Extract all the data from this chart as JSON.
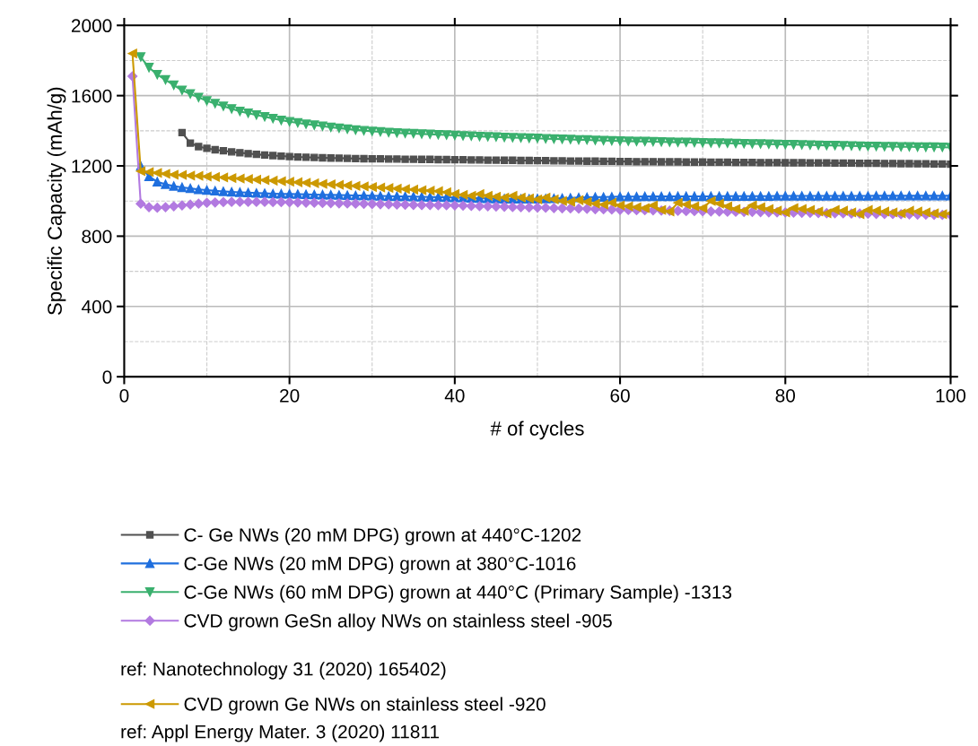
{
  "chart_data": {
    "type": "line",
    "xlabel": "# of cycles",
    "ylabel": "Specific Capacity (mAh/g)",
    "xlim": [
      0,
      100
    ],
    "xticks": [
      0,
      20,
      40,
      60,
      80,
      100
    ],
    "ylim": [
      0,
      2000
    ],
    "yticks": [
      0,
      400,
      800,
      1200,
      1600,
      2000
    ],
    "grid": true,
    "legend": "bottom",
    "line_style": "solid",
    "x": [
      1,
      2,
      3,
      4,
      5,
      6,
      7,
      8,
      9,
      10,
      11,
      12,
      13,
      14,
      15,
      16,
      17,
      18,
      19,
      20,
      21,
      22,
      23,
      24,
      25,
      26,
      27,
      28,
      29,
      30,
      31,
      32,
      33,
      34,
      35,
      36,
      37,
      38,
      39,
      40,
      41,
      42,
      43,
      44,
      45,
      46,
      47,
      48,
      49,
      50,
      51,
      52,
      53,
      54,
      55,
      56,
      57,
      58,
      59,
      60,
      61,
      62,
      63,
      64,
      65,
      66,
      67,
      68,
      69,
      70,
      71,
      72,
      73,
      74,
      75,
      76,
      77,
      78,
      79,
      80,
      81,
      82,
      83,
      84,
      85,
      86,
      87,
      88,
      89,
      90,
      91,
      92,
      93,
      94,
      95,
      96,
      97,
      98,
      99,
      100
    ],
    "series": [
      {
        "name": "C- Ge NWs (20 mM DPG) grown at 440°C-1202",
        "color": "#505050",
        "marker": "square",
        "values": [
          null,
          null,
          null,
          null,
          null,
          null,
          1390,
          1330,
          1310,
          1300,
          1292,
          1286,
          1280,
          1275,
          1270,
          1266,
          1262,
          1259,
          1256,
          1253,
          1251,
          1249,
          1248,
          1246,
          1245,
          1244,
          1243,
          1242,
          1241,
          1240,
          1240,
          1239,
          1239,
          1238,
          1238,
          1237,
          1237,
          1236,
          1236,
          1235,
          1235,
          1234,
          1234,
          1233,
          1233,
          1232,
          1232,
          1231,
          1231,
          1230,
          1230,
          1229,
          1229,
          1228,
          1228,
          1227,
          1227,
          1226,
          1226,
          1225,
          1225,
          1224,
          1224,
          1224,
          1223,
          1223,
          1223,
          1222,
          1222,
          1222,
          1221,
          1221,
          1221,
          1220,
          1220,
          1220,
          1219,
          1219,
          1219,
          1218,
          1218,
          1218,
          1217,
          1217,
          1217,
          1216,
          1216,
          1216,
          1215,
          1215,
          1215,
          1214,
          1214,
          1213,
          1213,
          1212,
          1212,
          1211,
          1211,
          1210
        ]
      },
      {
        "name": "C-Ge NWs (20 mM DPG) grown at 380°C-1016",
        "color": "#1f6fde",
        "marker": "triangle",
        "values": [
          null,
          1200,
          1140,
          1110,
          1095,
          1085,
          1078,
          1072,
          1066,
          1062,
          1058,
          1055,
          1052,
          1050,
          1048,
          1046,
          1044,
          1042,
          1041,
          1040,
          1039,
          1038,
          1037,
          1036,
          1035,
          1034,
          1033,
          1032,
          1031,
          1030,
          1029,
          1028,
          1027,
          1026,
          1025,
          1024,
          1023,
          1022,
          1021,
          1020,
          1020,
          1018,
          1016,
          1015,
          1014,
          1013,
          1012,
          1012,
          1012,
          1013,
          1014,
          1015,
          1016,
          1018,
          1020,
          1021,
          1022,
          1023,
          1024,
          1025,
          1025,
          1025,
          1026,
          1026,
          1026,
          1026,
          1027,
          1027,
          1027,
          1027,
          1027,
          1028,
          1028,
          1028,
          1028,
          1028,
          1028,
          1028,
          1029,
          1029,
          1029,
          1029,
          1029,
          1029,
          1029,
          1029,
          1029,
          1029,
          1029,
          1029,
          1030,
          1030,
          1030,
          1030,
          1030,
          1030,
          1030,
          1030,
          1030,
          1030
        ]
      },
      {
        "name": "C-Ge NWs (60 mM DPG) grown at 440°C (Primary Sample) -1313",
        "color": "#3ab06e",
        "marker": "triangle_down",
        "values": [
          null,
          1820,
          1760,
          1720,
          1690,
          1660,
          1630,
          1610,
          1590,
          1570,
          1555,
          1540,
          1525,
          1510,
          1500,
          1490,
          1480,
          1470,
          1460,
          1452,
          1445,
          1438,
          1432,
          1426,
          1420,
          1415,
          1410,
          1405,
          1401,
          1397,
          1394,
          1391,
          1388,
          1386,
          1384,
          1382,
          1380,
          1378,
          1376,
          1374,
          1372,
          1370,
          1368,
          1366,
          1365,
          1363,
          1361,
          1360,
          1358,
          1357,
          1355,
          1354,
          1352,
          1351,
          1349,
          1348,
          1346,
          1345,
          1343,
          1342,
          1341,
          1340,
          1339,
          1338,
          1337,
          1336,
          1335,
          1334,
          1333,
          1332,
          1331,
          1330,
          1329,
          1328,
          1327,
          1326,
          1325,
          1324,
          1323,
          1322,
          1321,
          1320,
          1319,
          1318,
          1317,
          1316,
          1315,
          1314,
          1313,
          1312,
          1311,
          1310,
          1310,
          1309,
          1309,
          1308,
          1307,
          1307,
          1306,
          1305
        ]
      },
      {
        "name": "CVD grown GeSn alloy NWs on stainless steel -905",
        "color": "#b27ae0",
        "marker": "diamond",
        "values": [
          1710,
          985,
          965,
          962,
          965,
          970,
          975,
          980,
          985,
          990,
          992,
          994,
          995,
          995,
          995,
          995,
          995,
          994,
          994,
          993,
          992,
          991,
          990,
          989,
          988,
          987,
          986,
          985,
          984,
          983,
          982,
          981,
          980,
          979,
          978,
          977,
          977,
          976,
          976,
          975,
          974,
          972,
          971,
          970,
          969,
          968,
          966,
          965,
          964,
          963,
          962,
          960,
          959,
          958,
          957,
          956,
          954,
          953,
          952,
          950,
          949,
          948,
          948,
          947,
          946,
          945,
          944,
          943,
          943,
          942,
          941,
          940,
          939,
          939,
          938,
          938,
          937,
          936,
          936,
          935,
          934,
          933,
          933,
          932,
          931,
          931,
          930,
          929,
          929,
          928,
          927,
          926,
          926,
          925,
          924,
          923,
          923,
          922,
          921,
          920
        ]
      },
      {
        "name": "CVD grown Ge NWs on stainless steel -920",
        "color": "#cc9900",
        "marker": "triangle_left",
        "values": [
          1840,
          1170,
          1165,
          1160,
          1155,
          1150,
          1148,
          1145,
          1143,
          1140,
          1137,
          1134,
          1131,
          1128,
          1125,
          1122,
          1119,
          1116,
          1113,
          1110,
          1107,
          1104,
          1101,
          1098,
          1095,
          1092,
          1089,
          1086,
          1083,
          1080,
          1077,
          1074,
          1071,
          1068,
          1065,
          1062,
          1059,
          1056,
          1050,
          1040,
          1035,
          1030,
          1040,
          1030,
          1025,
          1020,
          1030,
          1020,
          1015,
          1010,
          1020,
          1010,
          1000,
          995,
          1005,
          995,
          985,
          980,
          990,
          975,
          970,
          965,
          960,
          975,
          950,
          940,
          990,
          980,
          970,
          960,
          1000,
          985,
          970,
          955,
          945,
          975,
          965,
          955,
          945,
          935,
          960,
          955,
          950,
          940,
          930,
          950,
          945,
          935,
          925,
          950,
          945,
          940,
          935,
          930,
          945,
          940,
          935,
          930,
          925,
          930
        ]
      }
    ],
    "annotations": [
      "ref: Nanotechnology 31 (2020) 165402)",
      "ref: Appl Energy Mater. 3 (2020) 11811"
    ]
  }
}
